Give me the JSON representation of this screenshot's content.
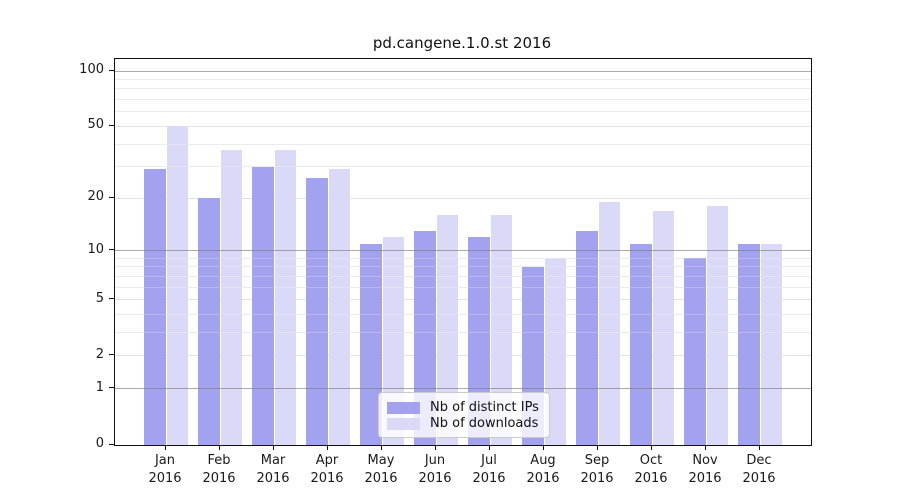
{
  "chart_data": {
    "type": "bar",
    "title": "pd.cangene.1.0.st 2016",
    "categories": [
      "Jan 2016",
      "Feb 2016",
      "Mar 2016",
      "Apr 2016",
      "May 2016",
      "Jun 2016",
      "Jul 2016",
      "Aug 2016",
      "Sep 2016",
      "Oct 2016",
      "Nov 2016",
      "Dec 2016"
    ],
    "series": [
      {
        "name": "Nb of distinct IPs",
        "color": "#a2a2ef",
        "values": [
          29,
          20,
          30,
          26,
          11,
          13,
          12,
          8,
          13,
          11,
          9,
          11
        ]
      },
      {
        "name": "Nb of downloads",
        "color": "#dadaf8",
        "values": [
          50,
          37,
          37,
          29,
          12,
          16,
          16,
          9,
          19,
          17,
          18,
          11
        ]
      }
    ],
    "y_axis": {
      "scale": "log10(value+1)",
      "ticks": [
        0,
        1,
        2,
        5,
        10,
        20,
        50,
        100
      ],
      "minor_ticks": [
        3,
        4,
        6,
        7,
        8,
        9,
        30,
        40,
        60,
        70,
        80,
        90
      ],
      "range": [
        0,
        116
      ]
    },
    "x_axis": {
      "tick_label_line2": "2016"
    },
    "legend": {
      "position": "inside-bottom-center",
      "entries": [
        "Nb of distinct IPs",
        "Nb of downloads"
      ]
    },
    "grid": true
  },
  "colors": {
    "bar_distinct_ips": "#a2a2ef",
    "bar_downloads": "#dadaf8",
    "grid_major": "#7d7d7d",
    "grid_minor": "#e7e7e7",
    "axis": "#111111",
    "background": "#ffffff"
  }
}
